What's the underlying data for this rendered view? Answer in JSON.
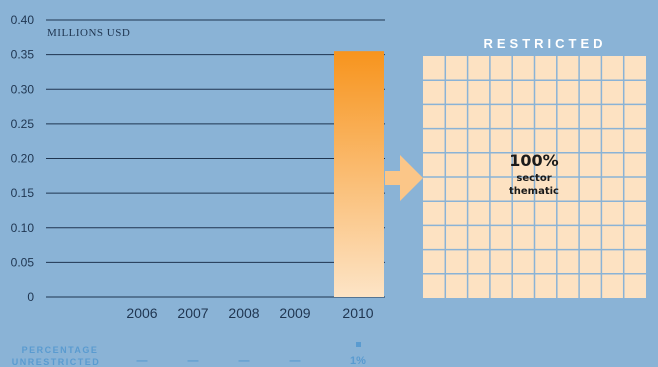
{
  "chart_data": {
    "type": "bar",
    "unit_label": "MILLIONS USD",
    "categories": [
      "2006",
      "2007",
      "2008",
      "2009",
      "2010"
    ],
    "values": [
      0,
      0,
      0,
      0,
      0.355
    ],
    "ylim": [
      0,
      0.4
    ],
    "y_ticks": [
      "0",
      "0.05",
      "0.10",
      "0.15",
      "0.20",
      "0.25",
      "0.30",
      "0.35",
      "0.40"
    ],
    "grid": true,
    "colors": {
      "bar_top": "#f7941d",
      "bar_bottom": "#fde4c6",
      "arrow": "#fbc688",
      "grid_fill": "#fde2c2",
      "grid_lines": "#8ab3d6"
    },
    "restricted": {
      "title": "RESTRICTED",
      "percent": "100%",
      "line1": "sector",
      "line2": "thematic"
    },
    "percentage_unrestricted": {
      "label_line1": "PERCENTAGE",
      "label_line2": "UNRESTRICTED",
      "values": [
        "—",
        "—",
        "—",
        "—",
        "1%"
      ]
    }
  }
}
